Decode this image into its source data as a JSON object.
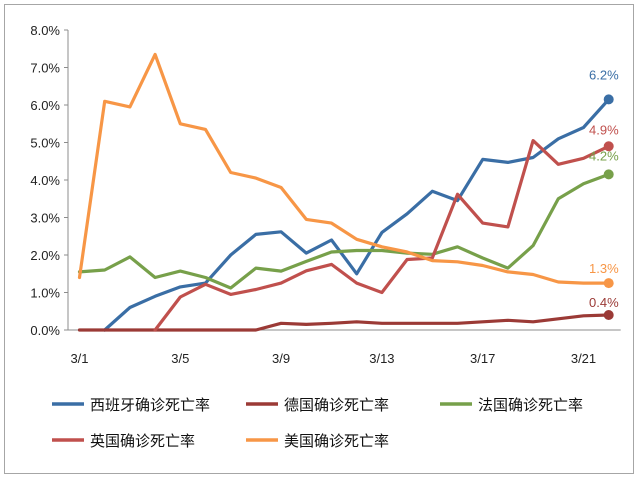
{
  "chart_data": {
    "type": "line",
    "title": "",
    "xlabel": "",
    "ylabel": "",
    "x_ticks": [
      "3/1",
      "3/5",
      "3/9",
      "3/13",
      "3/17",
      "3/21"
    ],
    "y_ticks": [
      "0.0%",
      "1.0%",
      "2.0%",
      "3.0%",
      "4.0%",
      "5.0%",
      "6.0%",
      "7.0%",
      "8.0%"
    ],
    "ylim": [
      0,
      8
    ],
    "x_days": [
      1,
      2,
      3,
      4,
      5,
      6,
      7,
      8,
      9,
      10,
      11,
      12,
      13,
      14,
      15,
      16,
      17,
      18,
      19,
      20,
      21,
      22
    ],
    "grid": false,
    "legend": "bottom",
    "series": [
      {
        "name": "西班牙确诊死亡率",
        "color": "#3a6ea5",
        "end_label": "6.2%",
        "values": [
          null,
          0.0,
          0.6,
          0.9,
          1.15,
          1.25,
          2.0,
          2.55,
          2.62,
          2.05,
          2.4,
          1.5,
          2.6,
          3.1,
          3.7,
          3.45,
          4.55,
          4.47,
          4.6,
          5.1,
          5.4,
          6.15
        ]
      },
      {
        "name": "德国确诊死亡率",
        "color": "#9b3a36",
        "end_label": "0.4%",
        "values": [
          0.0,
          0.0,
          0.0,
          0.0,
          0.0,
          0.0,
          0.0,
          0.0,
          0.18,
          0.15,
          0.18,
          0.22,
          0.18,
          0.18,
          0.18,
          0.18,
          0.22,
          0.26,
          0.22,
          0.3,
          0.38,
          0.4
        ]
      },
      {
        "name": "法国确诊死亡率",
        "color": "#77a04a",
        "end_label": "4.2%",
        "values": [
          1.55,
          1.6,
          1.95,
          1.4,
          1.57,
          1.4,
          1.12,
          1.65,
          1.57,
          1.83,
          2.08,
          2.12,
          2.12,
          2.05,
          2.02,
          2.22,
          1.92,
          1.65,
          2.25,
          3.5,
          3.9,
          4.15
        ]
      },
      {
        "name": "英国确诊死亡率",
        "color": "#c0504d",
        "end_label": "4.9%",
        "values": [
          null,
          null,
          null,
          0.0,
          0.88,
          1.22,
          0.95,
          1.08,
          1.25,
          1.58,
          1.75,
          1.25,
          1.0,
          1.88,
          1.92,
          3.62,
          2.85,
          2.75,
          5.05,
          4.42,
          4.58,
          4.9
        ]
      },
      {
        "name": "美国确诊死亡率",
        "color": "#f79646",
        "end_label": "1.3%",
        "values": [
          1.4,
          6.1,
          5.95,
          7.35,
          5.5,
          5.35,
          4.2,
          4.05,
          3.8,
          2.95,
          2.85,
          2.42,
          2.22,
          2.08,
          1.85,
          1.82,
          1.72,
          1.55,
          1.48,
          1.28,
          1.25,
          1.25
        ]
      }
    ]
  }
}
